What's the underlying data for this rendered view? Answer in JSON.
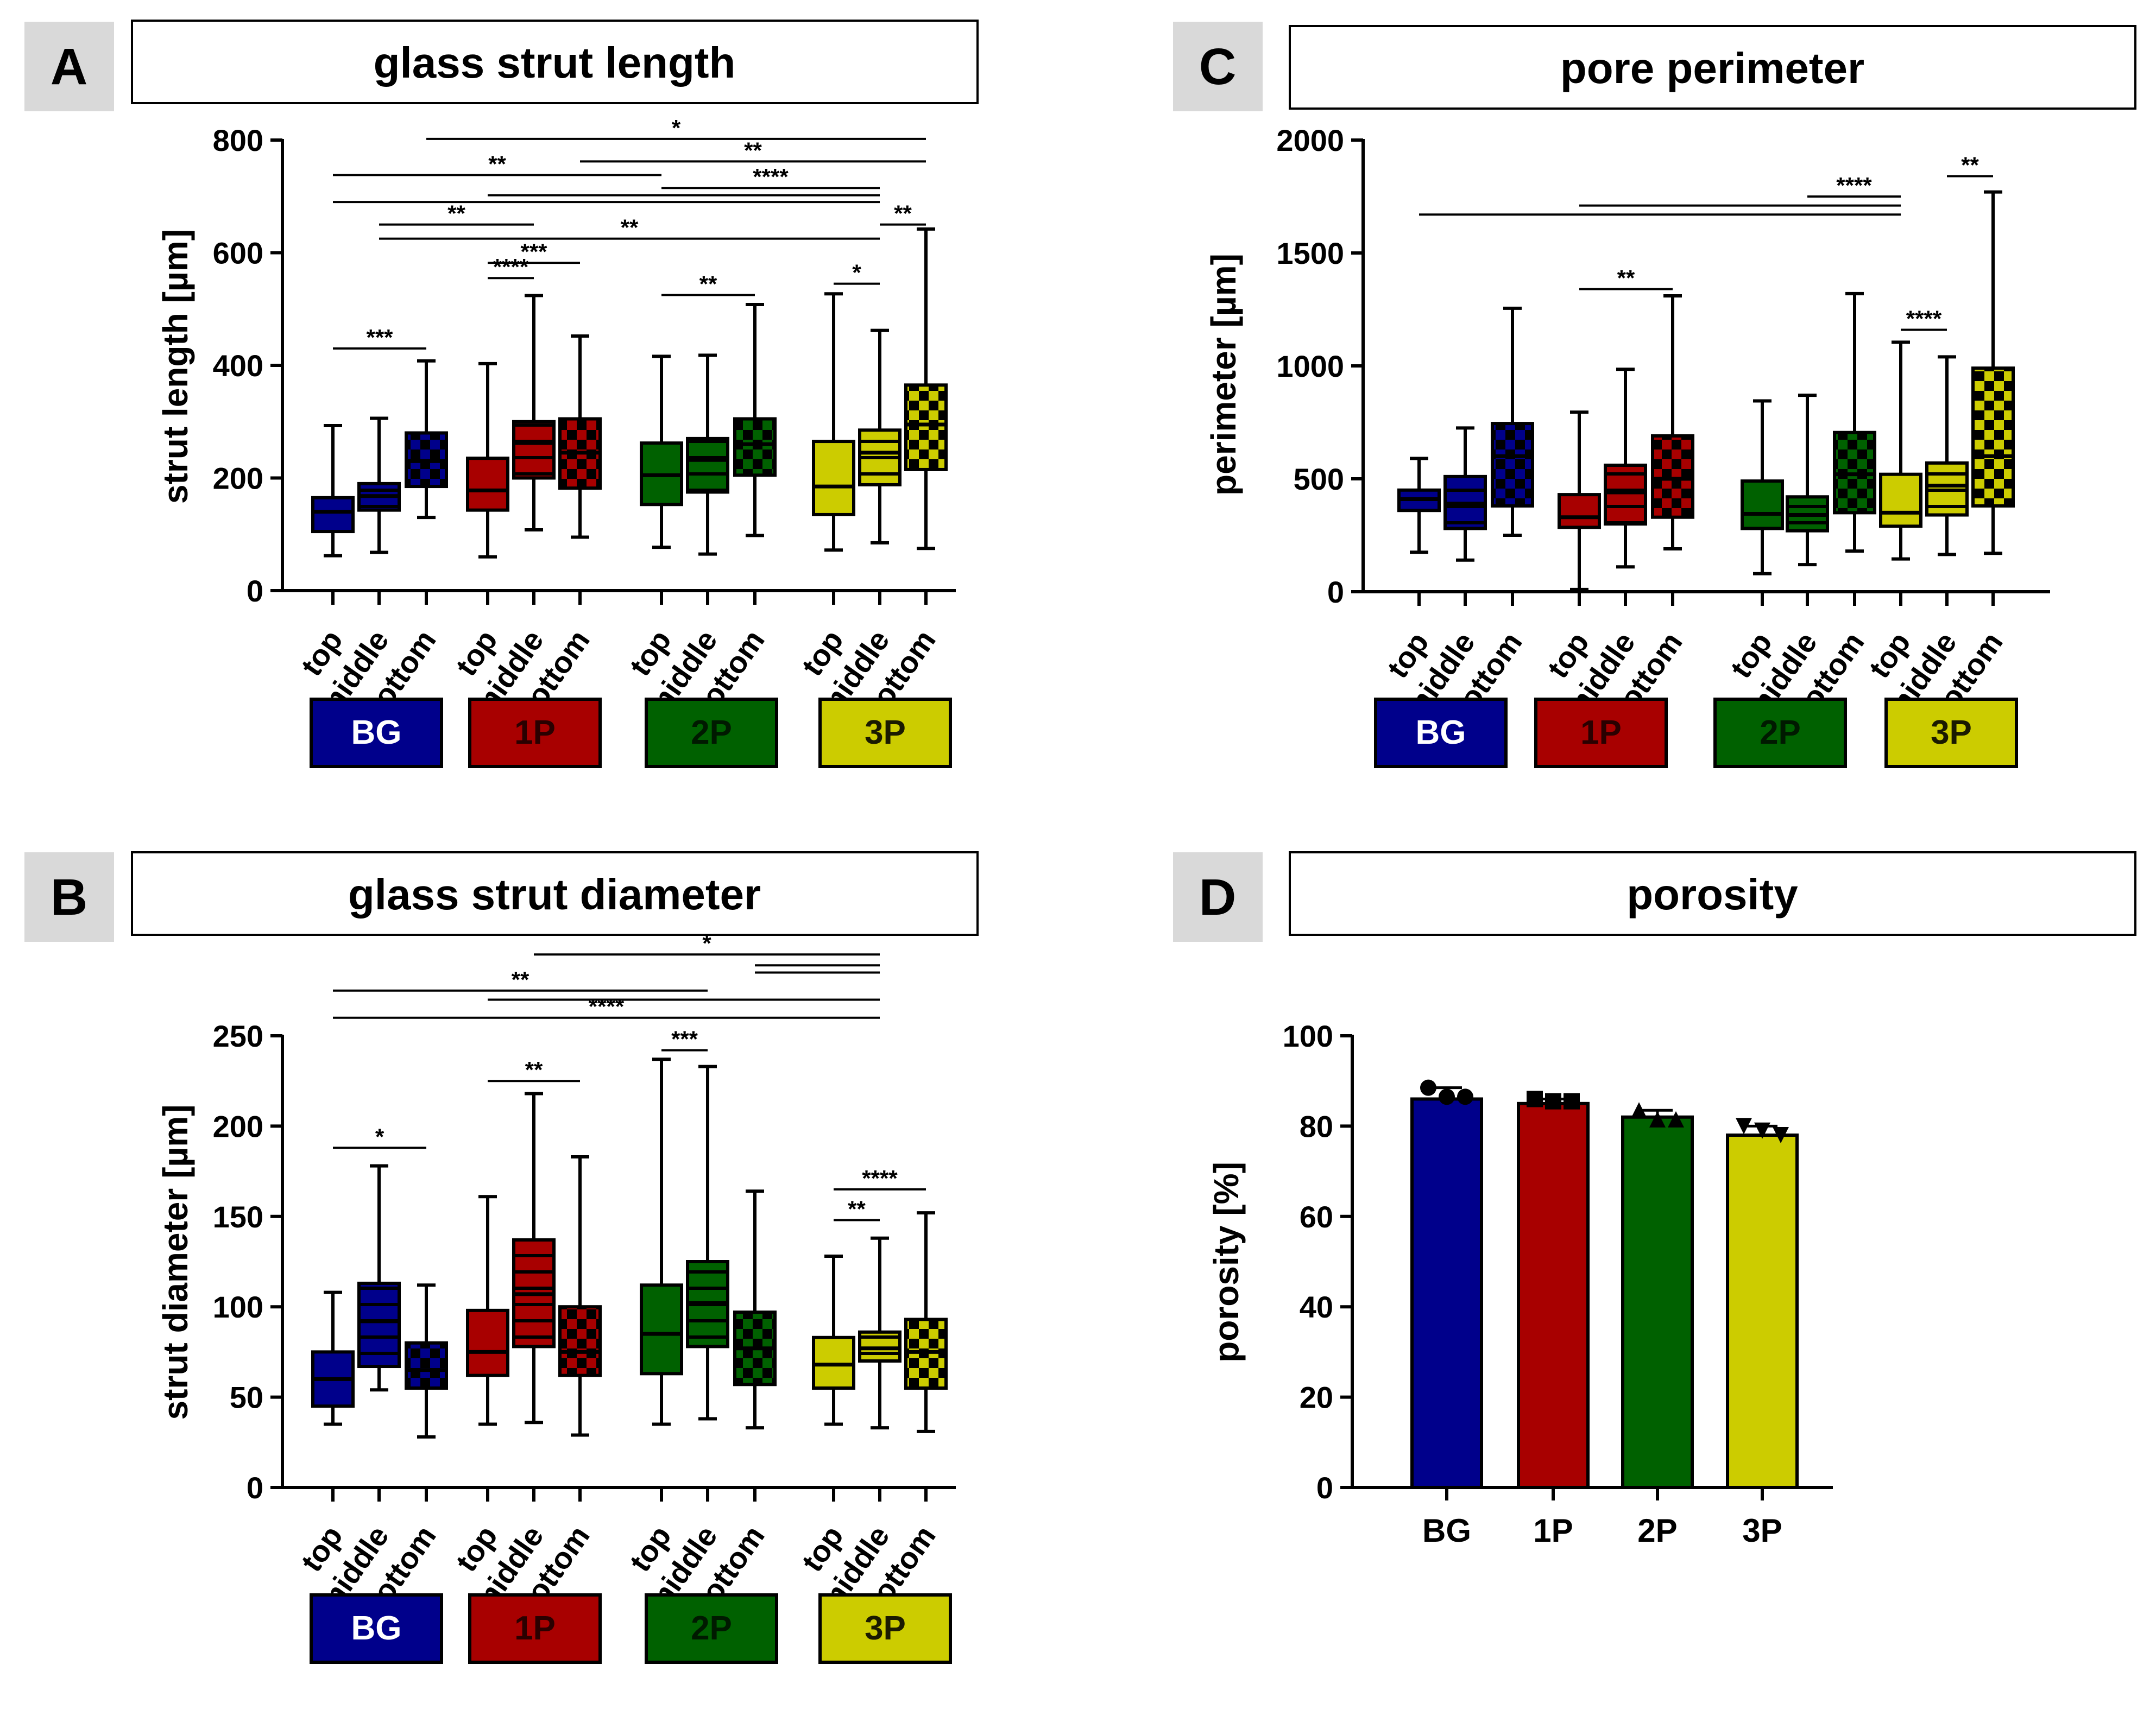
{
  "colors": {
    "BG": "#00008b",
    "1P": "#a80000",
    "2P": "#006100",
    "3P": "#cccc00",
    "axis": "#000000",
    "letter_bg": "#d9d9d9"
  },
  "chart_data": [
    {
      "id": "A",
      "type": "box",
      "letter": "A",
      "title": "glass strut length",
      "ylabel": "strut length [µm]",
      "ylim": [
        0,
        800
      ],
      "yticks": [
        0,
        200,
        400,
        600,
        800
      ],
      "positions": [
        "top",
        "middle",
        "bottom"
      ],
      "groups": [
        {
          "name": "BG",
          "boxes": [
            {
              "position": "top",
              "min": 62,
              "q1": 105,
              "median": 140,
              "q3": 165,
              "max": 293,
              "pattern": "none"
            },
            {
              "position": "middle",
              "min": 68,
              "q1": 143,
              "median": 168,
              "q3": 190,
              "max": 306,
              "pattern": "lines"
            },
            {
              "position": "bottom",
              "min": 130,
              "q1": 185,
              "median": 230,
              "q3": 280,
              "max": 408,
              "pattern": "checker"
            }
          ]
        },
        {
          "name": "1P",
          "boxes": [
            {
              "position": "top",
              "min": 60,
              "q1": 143,
              "median": 178,
              "q3": 235,
              "max": 403,
              "pattern": "none"
            },
            {
              "position": "middle",
              "min": 108,
              "q1": 200,
              "median": 262,
              "q3": 300,
              "max": 524,
              "pattern": "lines"
            },
            {
              "position": "bottom",
              "min": 95,
              "q1": 182,
              "median": 245,
              "q3": 305,
              "max": 452,
              "pattern": "checker"
            }
          ]
        },
        {
          "name": "2P",
          "boxes": [
            {
              "position": "top",
              "min": 77,
              "q1": 153,
              "median": 205,
              "q3": 262,
              "max": 416,
              "pattern": "none"
            },
            {
              "position": "middle",
              "min": 65,
              "q1": 175,
              "median": 232,
              "q3": 270,
              "max": 418,
              "pattern": "lines"
            },
            {
              "position": "bottom",
              "min": 98,
              "q1": 205,
              "median": 260,
              "q3": 305,
              "max": 508,
              "pattern": "checker"
            }
          ]
        },
        {
          "name": "3P",
          "boxes": [
            {
              "position": "top",
              "min": 72,
              "q1": 135,
              "median": 185,
              "q3": 265,
              "max": 527,
              "pattern": "none"
            },
            {
              "position": "middle",
              "min": 85,
              "q1": 188,
              "median": 245,
              "q3": 285,
              "max": 462,
              "pattern": "lines"
            },
            {
              "position": "bottom",
              "min": 75,
              "q1": 215,
              "median": 295,
              "q3": 365,
              "max": 642,
              "pattern": "checker"
            }
          ]
        }
      ],
      "significance": [
        {
          "label": "*",
          "from": 2,
          "to": 11,
          "y": 802
        },
        {
          "label": "**",
          "from": 5,
          "to": 11,
          "y": 762
        },
        {
          "label": "**",
          "from": 0,
          "to": 6,
          "y": 738
        },
        {
          "label": "****",
          "from": 6,
          "to": 10,
          "y": 715
        },
        {
          "label": "",
          "from": 3,
          "to": 10,
          "y": 702
        },
        {
          "label": "",
          "from": 0,
          "to": 10,
          "y": 690
        },
        {
          "label": "**",
          "from": 1,
          "to": 4,
          "y": 650
        },
        {
          "label": "**",
          "from": 1,
          "to": 10,
          "y": 625
        },
        {
          "label": "**",
          "from": 10,
          "to": 11,
          "y": 650
        },
        {
          "label": "***",
          "from": 3,
          "to": 5,
          "y": 582
        },
        {
          "label": "****",
          "from": 3,
          "to": 4,
          "y": 555
        },
        {
          "label": "*",
          "from": 9,
          "to": 10,
          "y": 545
        },
        {
          "label": "**",
          "from": 6,
          "to": 8,
          "y": 525
        },
        {
          "label": "***",
          "from": 0,
          "to": 2,
          "y": 430
        }
      ]
    },
    {
      "id": "B",
      "type": "box",
      "letter": "B",
      "title": "glass strut diameter",
      "ylabel": "strut diameter [µm]",
      "ylim": [
        0,
        250
      ],
      "yticks": [
        0,
        50,
        100,
        150,
        200,
        250
      ],
      "positions": [
        "top",
        "middle",
        "bottom"
      ],
      "groups": [
        {
          "name": "BG",
          "boxes": [
            {
              "position": "top",
              "min": 35,
              "q1": 45,
              "median": 60,
              "q3": 75,
              "max": 108,
              "pattern": "none"
            },
            {
              "position": "middle",
              "min": 54,
              "q1": 67,
              "median": 92,
              "q3": 113,
              "max": 178,
              "pattern": "lines"
            },
            {
              "position": "bottom",
              "min": 28,
              "q1": 55,
              "median": 65,
              "q3": 80,
              "max": 112,
              "pattern": "checker"
            }
          ]
        },
        {
          "name": "1P",
          "boxes": [
            {
              "position": "top",
              "min": 35,
              "q1": 62,
              "median": 75,
              "q3": 98,
              "max": 161,
              "pattern": "none"
            },
            {
              "position": "middle",
              "min": 36,
              "q1": 78,
              "median": 107,
              "q3": 137,
              "max": 218,
              "pattern": "lines"
            },
            {
              "position": "bottom",
              "min": 29,
              "q1": 62,
              "median": 75,
              "q3": 100,
              "max": 183,
              "pattern": "checker"
            }
          ]
        },
        {
          "name": "2P",
          "boxes": [
            {
              "position": "top",
              "min": 35,
              "q1": 63,
              "median": 85,
              "q3": 112,
              "max": 237,
              "pattern": "none"
            },
            {
              "position": "middle",
              "min": 38,
              "q1": 78,
              "median": 102,
              "q3": 125,
              "max": 233,
              "pattern": "lines"
            },
            {
              "position": "bottom",
              "min": 33,
              "q1": 57,
              "median": 77,
              "q3": 97,
              "max": 164,
              "pattern": "checker"
            }
          ]
        },
        {
          "name": "3P",
          "boxes": [
            {
              "position": "top",
              "min": 35,
              "q1": 55,
              "median": 68,
              "q3": 83,
              "max": 128,
              "pattern": "none"
            },
            {
              "position": "middle",
              "min": 33,
              "q1": 70,
              "median": 77,
              "q3": 86,
              "max": 138,
              "pattern": "lines"
            },
            {
              "position": "bottom",
              "min": 31,
              "q1": 55,
              "median": 75,
              "q3": 93,
              "max": 152,
              "pattern": "checker"
            }
          ]
        }
      ],
      "significance": [
        {
          "label": "*",
          "from": 4,
          "to": 10,
          "y": 295
        },
        {
          "label": "",
          "from": 8,
          "to": 10,
          "y": 289
        },
        {
          "label": "",
          "from": 8,
          "to": 10,
          "y": 285
        },
        {
          "label": "**",
          "from": 0,
          "to": 7,
          "y": 275
        },
        {
          "label": "",
          "from": 3,
          "to": 10,
          "y": 270
        },
        {
          "label": "****",
          "from": 0,
          "to": 10,
          "y": 260
        },
        {
          "label": "***",
          "from": 6,
          "to": 7,
          "y": 242
        },
        {
          "label": "**",
          "from": 3,
          "to": 5,
          "y": 225
        },
        {
          "label": "*",
          "from": 0,
          "to": 2,
          "y": 188
        },
        {
          "label": "****",
          "from": 9,
          "to": 11,
          "y": 165
        },
        {
          "label": "**",
          "from": 9,
          "to": 10,
          "y": 148
        }
      ]
    },
    {
      "id": "C",
      "type": "box",
      "letter": "C",
      "title": "pore perimeter",
      "ylabel": "perimeter [µm]",
      "ylim": [
        0,
        2000
      ],
      "yticks": [
        0,
        500,
        1000,
        1500,
        2000
      ],
      "positions": [
        "top",
        "middle",
        "bottom"
      ],
      "groups": [
        {
          "name": "BG",
          "boxes": [
            {
              "position": "top",
              "min": 175,
              "q1": 360,
              "median": 410,
              "q3": 450,
              "max": 590,
              "pattern": "none"
            },
            {
              "position": "middle",
              "min": 140,
              "q1": 280,
              "median": 390,
              "q3": 510,
              "max": 725,
              "pattern": "lines"
            },
            {
              "position": "bottom",
              "min": 250,
              "q1": 380,
              "median": 600,
              "q3": 745,
              "max": 1255,
              "pattern": "checker"
            }
          ]
        },
        {
          "name": "1P",
          "boxes": [
            {
              "position": "top",
              "min": 10,
              "q1": 285,
              "median": 330,
              "q3": 430,
              "max": 795,
              "pattern": "none"
            },
            {
              "position": "middle",
              "min": 110,
              "q1": 300,
              "median": 440,
              "q3": 560,
              "max": 985,
              "pattern": "lines"
            },
            {
              "position": "bottom",
              "min": 190,
              "q1": 330,
              "median": 500,
              "q3": 690,
              "max": 1310,
              "pattern": "checker"
            }
          ]
        },
        {
          "name": "2P",
          "boxes": [
            {
              "position": "top",
              "min": 80,
              "q1": 280,
              "median": 345,
              "q3": 490,
              "max": 845,
              "pattern": "none"
            },
            {
              "position": "middle",
              "min": 120,
              "q1": 270,
              "median": 340,
              "q3": 420,
              "max": 870,
              "pattern": "lines"
            },
            {
              "position": "bottom",
              "min": 180,
              "q1": 350,
              "median": 520,
              "q3": 705,
              "max": 1320,
              "pattern": "checker"
            }
          ]
        },
        {
          "name": "3P",
          "boxes": [
            {
              "position": "top",
              "min": 145,
              "q1": 290,
              "median": 350,
              "q3": 520,
              "max": 1105,
              "pattern": "none"
            },
            {
              "position": "middle",
              "min": 165,
              "q1": 340,
              "median": 470,
              "q3": 570,
              "max": 1040,
              "pattern": "lines"
            },
            {
              "position": "bottom",
              "min": 170,
              "q1": 380,
              "median": 600,
              "q3": 990,
              "max": 1770,
              "pattern": "checker"
            }
          ]
        }
      ],
      "significance": [
        {
          "label": "****",
          "from": 7,
          "to": 9,
          "y": 1750
        },
        {
          "label": "",
          "from": 3,
          "to": 9,
          "y": 1710
        },
        {
          "label": "",
          "from": 0,
          "to": 9,
          "y": 1670
        },
        {
          "label": "**",
          "from": 10,
          "to": 11,
          "y": 1840
        },
        {
          "label": "**",
          "from": 3,
          "to": 5,
          "y": 1340
        },
        {
          "label": "****",
          "from": 9,
          "to": 10,
          "y": 1160
        }
      ]
    },
    {
      "id": "D",
      "type": "bar",
      "letter": "D",
      "title": "porosity",
      "ylabel": "porosity [%]",
      "ylim": [
        0,
        100
      ],
      "yticks": [
        0,
        20,
        40,
        60,
        80,
        100
      ],
      "categories": [
        "BG",
        "1P",
        "2P",
        "3P"
      ],
      "values": [
        86,
        85,
        82,
        78
      ],
      "errors": [
        2.5,
        1,
        1.5,
        2
      ],
      "points": [
        [
          88.5,
          86.5,
          86.5
        ],
        [
          86,
          85.5,
          85.5
        ],
        [
          83.5,
          81.5,
          81.5
        ],
        [
          80,
          79,
          78
        ]
      ],
      "markers": [
        "circle",
        "square",
        "triangle-up",
        "triangle-down"
      ]
    }
  ]
}
